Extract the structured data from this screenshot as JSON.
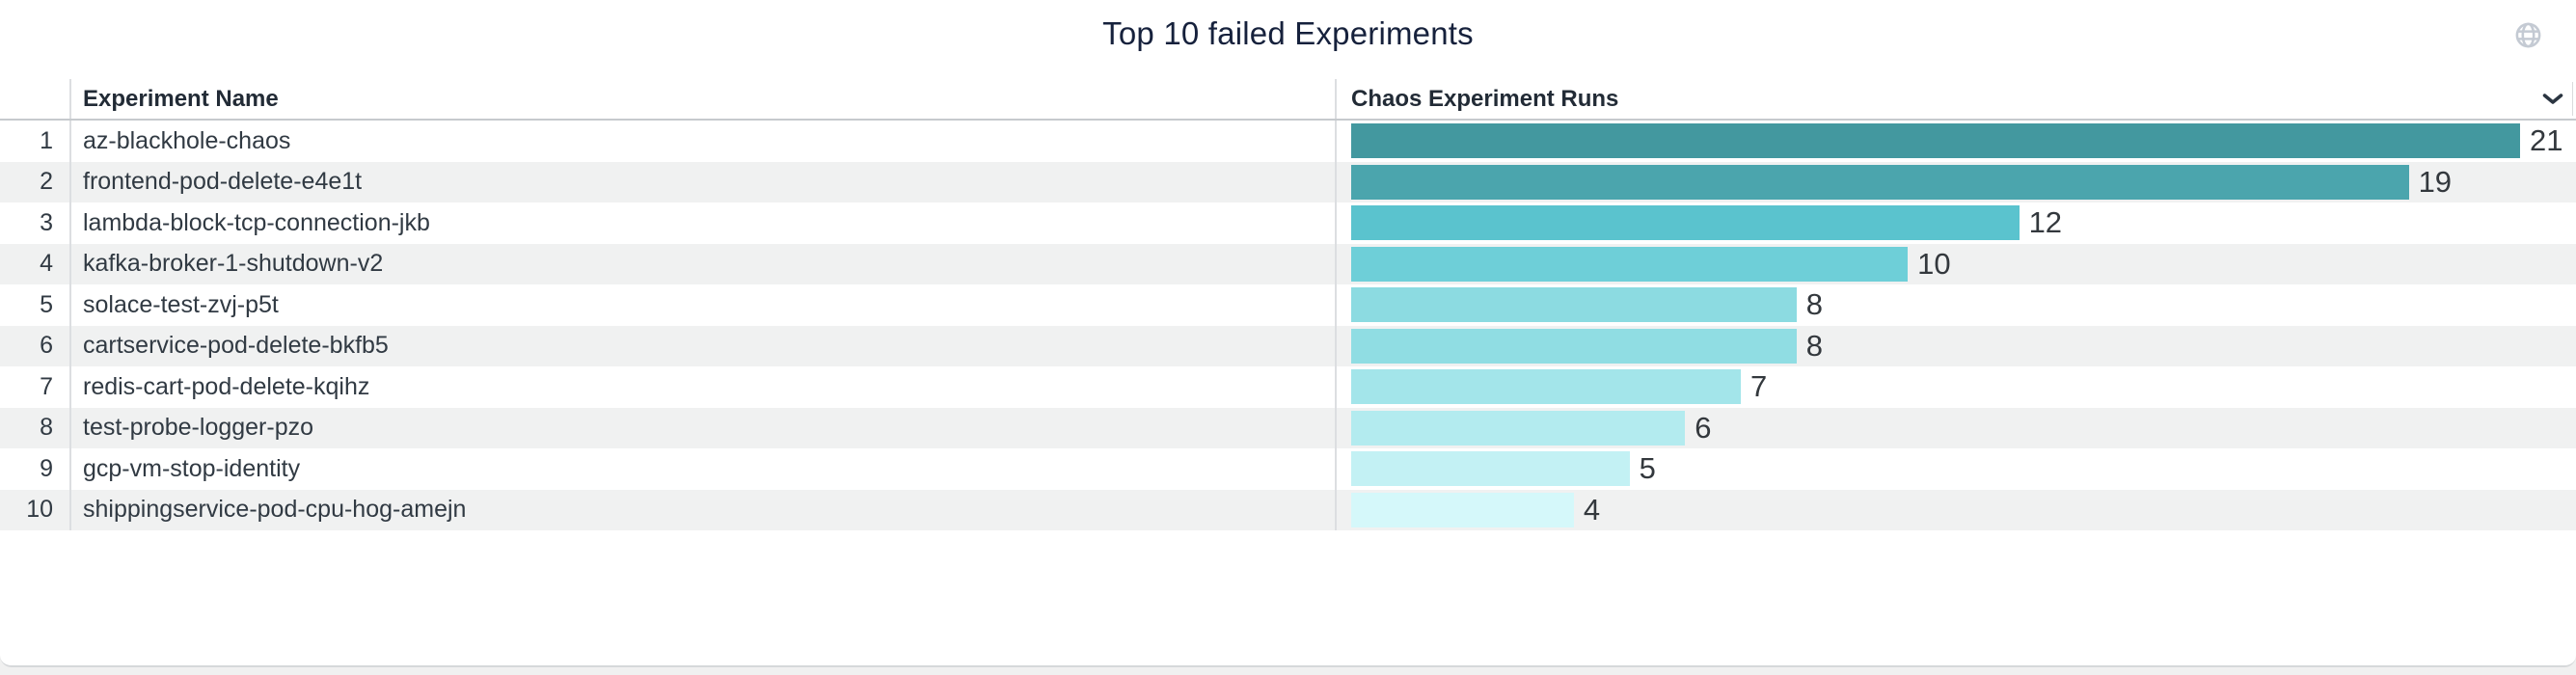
{
  "panel": {
    "title": "Top 10 failed Experiments",
    "globe_icon": "globe",
    "sort_icon": "chevron-down"
  },
  "table": {
    "columns": [
      {
        "label": "Experiment Name"
      },
      {
        "label": "Chaos Experiment Runs"
      }
    ],
    "rows": [
      {
        "rank": "1",
        "name": "az-blackhole-chaos",
        "runs": 21,
        "bar_color": "#43989f"
      },
      {
        "rank": "2",
        "name": "frontend-pod-delete-e4e1t",
        "runs": 19,
        "bar_color": "#4ba5ad"
      },
      {
        "rank": "3",
        "name": "lambda-block-tcp-connection-jkb",
        "runs": 12,
        "bar_color": "#5ac3ce"
      },
      {
        "rank": "4",
        "name": "kafka-broker-1-shutdown-v2",
        "runs": 10,
        "bar_color": "#6ecfd8"
      },
      {
        "rank": "5",
        "name": "solace-test-zvj-p5t",
        "runs": 8,
        "bar_color": "#8cdbe1"
      },
      {
        "rank": "6",
        "name": "cartservice-pod-delete-bkfb5",
        "runs": 8,
        "bar_color": "#90dde3"
      },
      {
        "rank": "7",
        "name": "redis-cart-pod-delete-kqihz",
        "runs": 7,
        "bar_color": "#a3e5ea"
      },
      {
        "rank": "8",
        "name": "test-probe-logger-pzo",
        "runs": 6,
        "bar_color": "#b3ebef"
      },
      {
        "rank": "9",
        "name": "gcp-vm-stop-identity",
        "runs": 5,
        "bar_color": "#c3f1f4"
      },
      {
        "rank": "10",
        "name": "shippingservice-pod-cpu-hog-amejn",
        "runs": 4,
        "bar_color": "#d5f8fa"
      }
    ]
  },
  "chart_data": {
    "type": "bar",
    "orientation": "horizontal",
    "title": "Top 10 failed Experiments",
    "xlabel": "Chaos Experiment Runs",
    "ylabel": "Experiment Name",
    "categories": [
      "az-blackhole-chaos",
      "frontend-pod-delete-e4e1t",
      "lambda-block-tcp-connection-jkb",
      "kafka-broker-1-shutdown-v2",
      "solace-test-zvj-p5t",
      "cartservice-pod-delete-bkfb5",
      "redis-cart-pod-delete-kqihz",
      "test-probe-logger-pzo",
      "gcp-vm-stop-identity",
      "shippingservice-pod-cpu-hog-amejn"
    ],
    "values": [
      21,
      19,
      12,
      10,
      8,
      8,
      7,
      6,
      5,
      4
    ],
    "xlim": [
      0,
      22
    ],
    "value_labels": true,
    "legend": false,
    "grid": false,
    "bar_colors": [
      "#43989f",
      "#4ba5ad",
      "#5ac3ce",
      "#6ecfd8",
      "#8cdbe1",
      "#90dde3",
      "#a3e5ea",
      "#b3ebef",
      "#c3f1f4",
      "#d5f8fa"
    ]
  },
  "colors": {
    "page_background": "#f0f0f0",
    "panel_background": "#ffffff",
    "title_text": "#16213c",
    "header_text": "#222b36",
    "header_underline": "#c6cacd",
    "column_divider": "#dcdee1",
    "row_stripe": "#f0f1f1",
    "row_text": "#313a43",
    "value_text": "#33383d",
    "globe_icon": "#c4cad3",
    "chevron_icon": "#2b3541"
  }
}
